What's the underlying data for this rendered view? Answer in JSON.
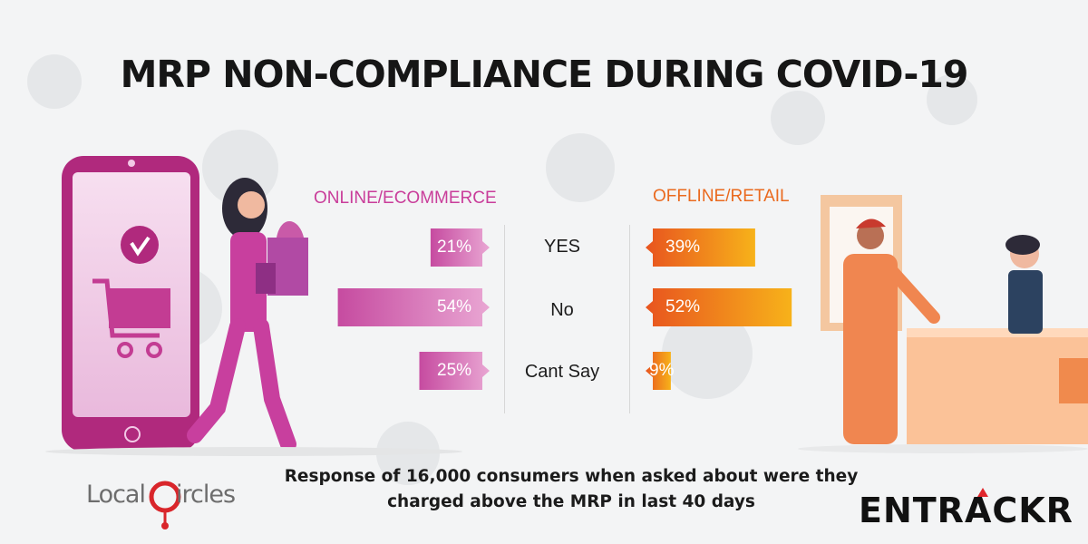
{
  "header": {
    "title": "MRP NON-COMPLIANCE DURING COVID-19"
  },
  "chart_data": {
    "type": "bar",
    "categories": [
      "YES",
      "No",
      "Cant Say"
    ],
    "series": [
      {
        "name": "ONLINE/ECOMMERCE",
        "values": [
          21,
          54,
          25
        ],
        "labels": [
          "21%",
          "54%",
          "25%"
        ]
      },
      {
        "name": "OFFLINE/RETAIL",
        "values": [
          39,
          52,
          9
        ],
        "labels": [
          "39%",
          "52%",
          "9%"
        ]
      }
    ],
    "unit": "%",
    "orientation": "horizontal-diverging",
    "colors": {
      "online": [
        "#c64ba0",
        "#e9a6d3"
      ],
      "offline": [
        "#e8541f",
        "#f7b21a"
      ]
    }
  },
  "footer": {
    "caption_line1": "Response of 16,000 consumers when asked about were they",
    "caption_line2": "charged above the MRP in last 40 days"
  },
  "logos": {
    "localcircles": {
      "text_before": "Local",
      "text_after": "ircles"
    },
    "entrackr": {
      "text": "ENTRACKR"
    }
  }
}
